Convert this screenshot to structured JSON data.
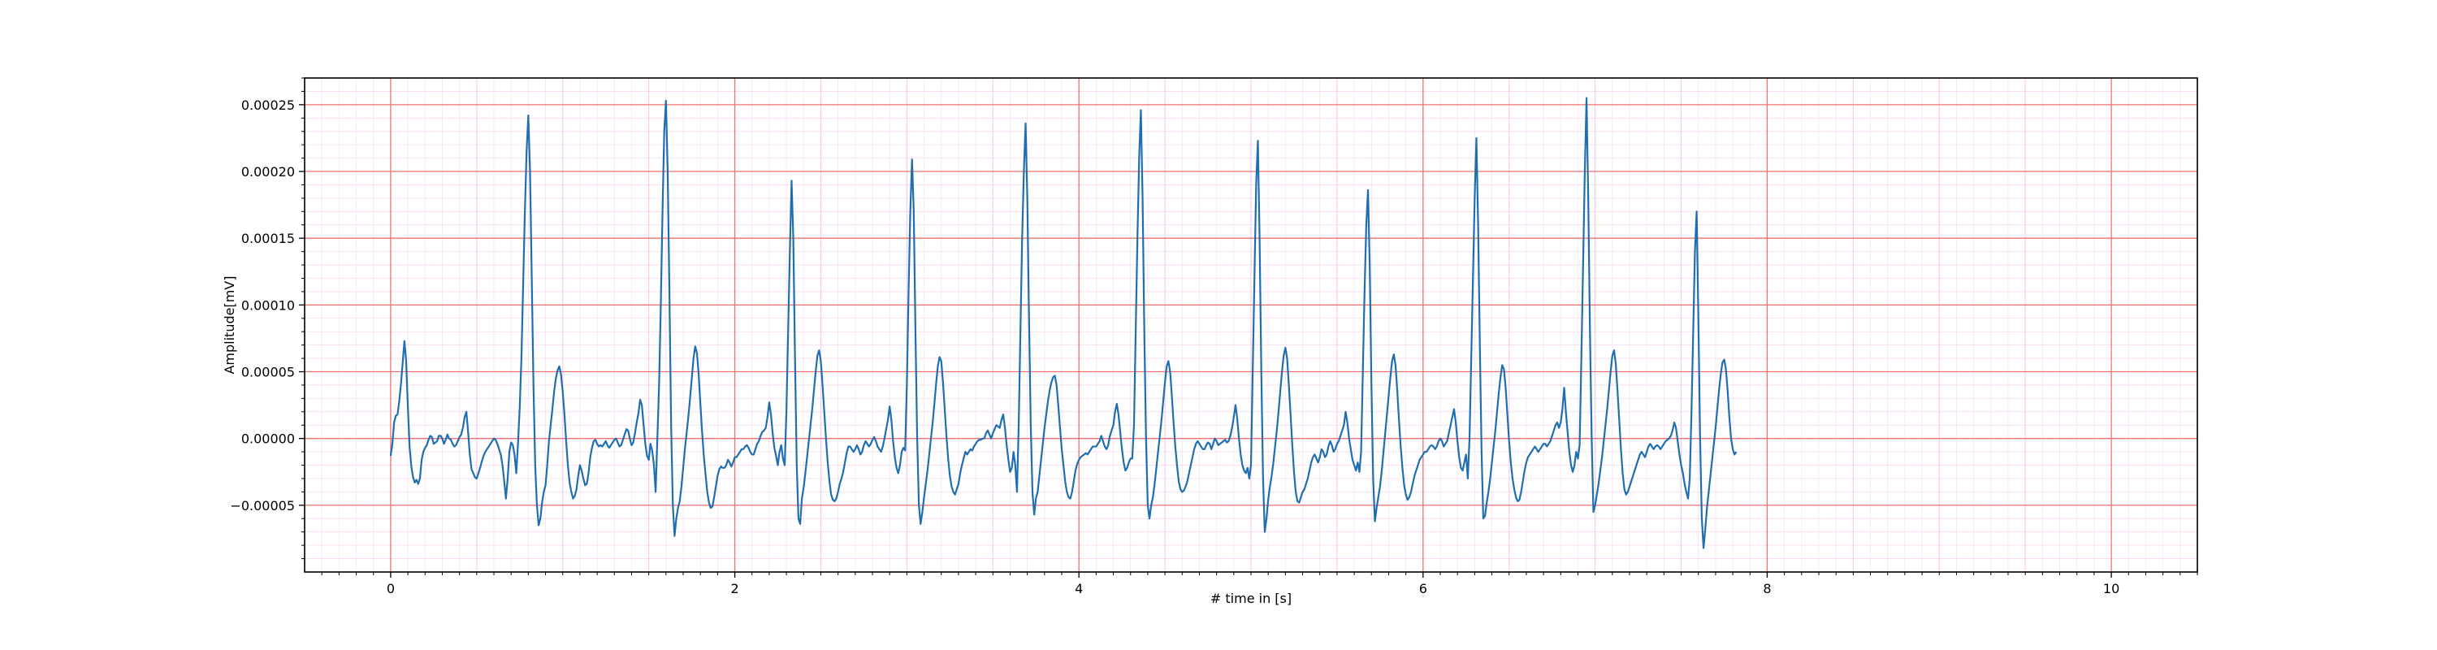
{
  "chart_data": {
    "type": "line",
    "title": "",
    "xlabel": "# time in [s]",
    "ylabel": "Amplitude[mV]",
    "xlim": [
      -0.5,
      10.5
    ],
    "ylim": [
      -0.0001,
      0.00027
    ],
    "x_ticks": [
      0,
      2,
      4,
      6,
      8,
      10
    ],
    "x_tick_labels": [
      "0",
      "2",
      "4",
      "6",
      "8",
      "10"
    ],
    "y_ticks": [
      -5e-05,
      0.0,
      5e-05,
      0.0001,
      0.00015,
      0.0002,
      0.00025
    ],
    "y_tick_labels": [
      "−0.00005",
      "0.00000",
      "0.00005",
      "0.00010",
      "0.00015",
      "0.00020",
      "0.00025"
    ],
    "grid": {
      "major": true,
      "minor": true,
      "major_color": "#f07070",
      "minor_color": "#f5c8ee"
    },
    "line_color": "#1f6fb0",
    "sample_interval_s": 0.01,
    "series": [
      {
        "name": "",
        "x_start": 0.0,
        "x_step": 0.01,
        "values": [
          -1.3e-05,
          -4e-06,
          1.2e-05,
          1.7e-05,
          1.8e-05,
          2.8e-05,
          4.1e-05,
          5.7e-05,
          7.3e-05,
          5.8e-05,
          2.4e-05,
          -6e-06,
          -2.1e-05,
          -2.9e-05,
          -3.3e-05,
          -3.1e-05,
          -3.4e-05,
          -3e-05,
          -1.6e-05,
          -1e-05,
          -7e-06,
          -5e-06,
          -1e-06,
          2e-06,
          1e-06,
          -4e-06,
          -3e-06,
          -2e-06,
          2e-06,
          2e-06,
          0.0,
          -4e-06,
          -1e-06,
          3e-06,
          0.0,
          -1e-06,
          -4e-06,
          -6e-06,
          -5e-06,
          -2e-06,
          1e-06,
          3e-06,
          8e-06,
          1.6e-05,
          2e-05,
          5e-06,
          -1.2e-05,
          -2.3e-05,
          -2.6e-05,
          -2.9e-05,
          -3e-05,
          -2.6e-05,
          -2.2e-05,
          -1.7e-05,
          -1.3e-05,
          -1e-05,
          -8e-06,
          -6e-06,
          -4e-06,
          -2e-06,
          0.0,
          -1e-06,
          -4e-06,
          -8e-06,
          -1.2e-05,
          -2e-05,
          -3.2e-05,
          -4.5e-05,
          -3e-05,
          -1e-05,
          -3e-06,
          -5e-06,
          -1.2e-05,
          -2.6e-05,
          -4e-06,
          2.3e-05,
          6e-05,
          0.000115,
          0.00017,
          0.000215,
          0.000242,
          0.0002,
          0.00012,
          4e-05,
          -2e-05,
          -5e-05,
          -6.5e-05,
          -6e-05,
          -4.8e-05,
          -4e-05,
          -3.5e-05,
          -2e-05,
          -2e-06,
          1e-05,
          2.2e-05,
          3.5e-05,
          4.5e-05,
          5.1e-05,
          5.4e-05,
          4.8e-05,
          3.5e-05,
          1.8e-05,
          -2e-06,
          -2e-05,
          -3.3e-05,
          -4e-05,
          -4.5e-05,
          -4.3e-05,
          -3.8e-05,
          -2.8e-05,
          -2e-05,
          -2.4e-05,
          -3e-05,
          -3.5e-05,
          -3.4e-05,
          -2.6e-05,
          -1.4e-05,
          -7e-06,
          -2e-06,
          -1e-06,
          -4e-06,
          -6e-06,
          -5e-06,
          -6e-06,
          -4e-06,
          -2e-06,
          -5e-06,
          -7e-06,
          -5e-06,
          -3e-06,
          -1e-06,
          0.0,
          -3e-06,
          -6e-06,
          -5e-06,
          -1e-06,
          3e-06,
          7e-06,
          6e-06,
          0.0,
          -5e-06,
          -3e-06,
          4e-06,
          1.2e-05,
          1.9e-05,
          2.9e-05,
          2.5e-05,
          1e-05,
          -4e-06,
          -1.3e-05,
          -1.6e-05,
          -4e-06,
          -9e-06,
          -2e-05,
          -4e-05,
          0.0,
          4e-05,
          0.0001,
          0.00017,
          0.00023,
          0.000253,
          0.0002,
          0.00011,
          1e-05,
          -5e-05,
          -7.3e-05,
          -6e-05,
          -5.2e-05,
          -4.7e-05,
          -3.6e-05,
          -2.2e-05,
          -8e-06,
          4e-06,
          1.6e-05,
          3e-05,
          4.5e-05,
          6e-05,
          6.9e-05,
          6.4e-05,
          4.8e-05,
          2.6e-05,
          5e-06,
          -1.3e-05,
          -2.7e-05,
          -4e-05,
          -4.8e-05,
          -5.2e-05,
          -5.1e-05,
          -4.4e-05,
          -3.6e-05,
          -2.8e-05,
          -2.3e-05,
          -2.1e-05,
          -2.2e-05,
          -2.2e-05,
          -2e-05,
          -1.6e-05,
          -1.8e-05,
          -2.1e-05,
          -1.8e-05,
          -1.4e-05,
          -1.4e-05,
          -1.2e-05,
          -1e-05,
          -8e-06,
          -8e-06,
          -6e-06,
          -5e-06,
          -7e-06,
          -1e-05,
          -1.2e-05,
          -1.2e-05,
          -8e-06,
          -4e-06,
          -2e-06,
          2e-06,
          5e-06,
          6e-06,
          8e-06,
          1.6e-05,
          2.7e-05,
          1.8e-05,
          4e-06,
          -7e-06,
          -1.3e-05,
          -2e-05,
          -1e-05,
          -5e-06,
          -1.5e-05,
          -2e-05,
          2e-05,
          8e-05,
          0.00014,
          0.000193,
          0.00015,
          6e-05,
          -2e-05,
          -6e-05,
          -6.4e-05,
          -4.5e-05,
          -3.7e-05,
          -2.6e-05,
          -1.4e-05,
          -2e-06,
          1e-05,
          2.2e-05,
          3.6e-05,
          5e-05,
          6.2e-05,
          6.6e-05,
          5.8e-05,
          4e-05,
          2e-05,
          0.0,
          -1.8e-05,
          -3.2e-05,
          -4.2e-05,
          -4.6e-05,
          -4.7e-05,
          -4.5e-05,
          -4e-05,
          -3.4e-05,
          -3e-05,
          -2.5e-05,
          -1.8e-05,
          -1.1e-05,
          -6e-06,
          -6e-06,
          -8e-06,
          -1e-05,
          -8e-06,
          -5e-06,
          -8e-06,
          -1.2e-05,
          -1e-05,
          -5e-06,
          -2e-06,
          -4e-06,
          -6e-06,
          -4e-06,
          -1e-06,
          1e-06,
          -2e-06,
          -6e-06,
          -8e-06,
          -1e-05,
          -6e-06,
          0.0,
          7e-06,
          1.4e-05,
          2.4e-05,
          1.4e-05,
          -2e-06,
          -1.4e-05,
          -2.2e-05,
          -2.6e-05,
          -2e-05,
          -1e-05,
          -7e-06,
          -9e-06,
          4e-05,
          0.00011,
          0.00017,
          0.000209,
          0.00017,
          8e-05,
          0.0,
          -5e-05,
          -6.4e-05,
          -5.5e-05,
          -4.4e-05,
          -3.4e-05,
          -2.4e-05,
          -1.2e-05,
          0.0,
          1.2e-05,
          2.6e-05,
          4.1e-05,
          5.4e-05,
          6.1e-05,
          5.8e-05,
          4.2e-05,
          2.2e-05,
          2e-06,
          -1.5e-05,
          -2.8e-05,
          -3.6e-05,
          -4e-05,
          -4.2e-05,
          -3.8e-05,
          -3.4e-05,
          -2.6e-05,
          -2e-05,
          -1.5e-05,
          -1e-05,
          -1.2e-05,
          -1e-05,
          -8e-06,
          -9e-06,
          -6e-06,
          -4e-06,
          -2e-06,
          -1e-06,
          -1e-06,
          0.0,
          0.0,
          4e-06,
          6e-06,
          3e-06,
          0.0,
          4e-06,
          7e-06,
          1e-05,
          9e-06,
          8e-06,
          1.4e-05,
          1.8e-05,
          8e-06,
          -5e-06,
          -1.6e-05,
          -2.5e-05,
          -2.2e-05,
          -1e-05,
          -2e-05,
          -4e-05,
          1e-05,
          8e-05,
          0.00015,
          0.0002,
          0.000236,
          0.00018,
          9e-05,
          1e-05,
          -4e-05,
          -5.7e-05,
          -4.5e-05,
          -4e-05,
          -2.8e-05,
          -1.6e-05,
          -4e-06,
          8e-06,
          1.8e-05,
          2.8e-05,
          3.6e-05,
          4.2e-05,
          4.6e-05,
          4.7e-05,
          4e-05,
          2.5e-05,
          8e-06,
          -8e-06,
          -2e-05,
          -3.2e-05,
          -4e-05,
          -4.4e-05,
          -4.5e-05,
          -4e-05,
          -3.2e-05,
          -2.4e-05,
          -1.9e-05,
          -1.6e-05,
          -1.4e-05,
          -1.3e-05,
          -1.2e-05,
          -1.1e-05,
          -1.2e-05,
          -1e-05,
          -8e-06,
          -6e-06,
          -6e-06,
          -6e-06,
          -4e-06,
          -2e-06,
          2e-06,
          -2e-06,
          -6e-06,
          -8e-06,
          -5e-06,
          2e-06,
          6e-06,
          1e-05,
          2e-05,
          2.6e-05,
          1.8e-05,
          5e-06,
          -8e-06,
          -1.8e-05,
          -2.4e-05,
          -2.2e-05,
          -1.8e-05,
          -1.5e-05,
          -1.5e-05,
          1e-05,
          8e-05,
          0.00015,
          0.00021,
          0.000246,
          0.00018,
          8e-05,
          0.0,
          -5e-05,
          -6e-05,
          -5e-05,
          -4.4e-05,
          -3.4e-05,
          -2.2e-05,
          -1e-05,
          2e-06,
          1.4e-05,
          2.8e-05,
          4.2e-05,
          5.4e-05,
          5.8e-05,
          5e-05,
          3.2e-05,
          1.2e-05,
          -6e-06,
          -2e-05,
          -3.2e-05,
          -3.8e-05,
          -4e-05,
          -3.9e-05,
          -3.6e-05,
          -3.2e-05,
          -2.6e-05,
          -2e-05,
          -1.4e-05,
          -8e-06,
          -4e-06,
          -2e-06,
          -4e-06,
          -6e-06,
          -8e-06,
          -8e-06,
          -5e-06,
          -3e-06,
          -4e-06,
          -8e-06,
          -4e-06,
          0.0,
          -2e-06,
          -5e-06,
          -4e-06,
          -3e-06,
          -2e-06,
          -1e-06,
          -3e-06,
          -2e-06,
          2e-06,
          8e-06,
          1.6e-05,
          2.5e-05,
          1.5e-05,
          0.0,
          -1.2e-05,
          -2e-05,
          -2.4e-05,
          -2.6e-05,
          -2.2e-05,
          -3e-05,
          -2e-05,
          5e-05,
          0.00012,
          0.00019,
          0.000223,
          0.00015,
          5e-05,
          -3e-05,
          -7e-05,
          -6e-05,
          -4.6e-05,
          -3.6e-05,
          -2.8e-05,
          -1.8e-05,
          -6e-06,
          6e-06,
          2e-05,
          3.5e-05,
          5e-05,
          6.2e-05,
          6.8e-05,
          6e-05,
          4e-05,
          1.8e-05,
          -5e-06,
          -2.5e-05,
          -4e-05,
          -4.7e-05,
          -4.8e-05,
          -4.4e-05,
          -4e-05,
          -3.8e-05,
          -3.4e-05,
          -3e-05,
          -2.4e-05,
          -1.8e-05,
          -1.4e-05,
          -1.2e-05,
          -1.5e-05,
          -1.8e-05,
          -1.4e-05,
          -8e-06,
          -1e-05,
          -1.4e-05,
          -1.2e-05,
          -6e-06,
          -2e-06,
          -5e-06,
          -1e-05,
          -8e-06,
          -4e-06,
          -2e-06,
          2e-06,
          6e-06,
          1e-05,
          2e-05,
          1.2e-05,
          0.0,
          -8e-06,
          -1.6e-05,
          -2e-05,
          -2.4e-05,
          -1.8e-05,
          -2.5e-05,
          -1e-05,
          5e-05,
          0.00011,
          0.00016,
          0.000186,
          0.00013,
          4e-05,
          -3e-05,
          -6.2e-05,
          -5.2e-05,
          -4.4e-05,
          -3.6e-05,
          -2.4e-05,
          -1e-05,
          4e-06,
          1.8e-05,
          3.2e-05,
          4.6e-05,
          5.8e-05,
          6.3e-05,
          5.5e-05,
          3.6e-05,
          1.4e-05,
          -6e-06,
          -2.2e-05,
          -3.5e-05,
          -4.2e-05,
          -4.6e-05,
          -4.4e-05,
          -4e-05,
          -3.4e-05,
          -2.8e-05,
          -2.4e-05,
          -2e-05,
          -1.6e-05,
          -1.4e-05,
          -1.2e-05,
          -1e-05,
          -1e-05,
          -8e-06,
          -6e-06,
          -5e-06,
          -6e-06,
          -8e-06,
          -6e-06,
          -2e-06,
          0.0,
          -2e-06,
          -6e-06,
          -4e-06,
          -2e-06,
          4e-06,
          1e-05,
          1.6e-05,
          2.2e-05,
          1.2e-05,
          -2e-06,
          -1.4e-05,
          -2.2e-05,
          -2.4e-05,
          -1.8e-05,
          -1.2e-05,
          -3e-05,
          0.0,
          6e-05,
          0.00012,
          0.00018,
          0.000225,
          0.00016,
          7e-05,
          -1e-05,
          -6e-05,
          -5.8e-05,
          -4.8e-05,
          -4e-05,
          -3e-05,
          -1.8e-05,
          -6e-06,
          6e-06,
          2e-05,
          3.4e-05,
          4.6e-05,
          5.5e-05,
          5.2e-05,
          3.8e-05,
          1.8e-05,
          -2e-06,
          -1.8e-05,
          -3e-05,
          -3.8e-05,
          -4.4e-05,
          -4.7e-05,
          -4.6e-05,
          -4e-05,
          -3.2e-05,
          -2.4e-05,
          -1.8e-05,
          -1.4e-05,
          -1.2e-05,
          -1e-05,
          -8e-06,
          -6e-06,
          -8e-06,
          -1e-05,
          -8e-06,
          -6e-06,
          -4e-06,
          -4e-06,
          -6e-06,
          -4e-06,
          -2e-06,
          2e-06,
          6e-06,
          1e-05,
          1.2e-05,
          8e-06,
          1.2e-05,
          2.2e-05,
          3.8e-05,
          2e-05,
          5e-06,
          -1e-05,
          -2e-05,
          -2.5e-05,
          -2e-05,
          -1e-05,
          -1.5e-05,
          -5e-06,
          6e-05,
          0.00013,
          0.0002,
          0.000255,
          0.00018,
          8e-05,
          0.0,
          -5.5e-05,
          -5e-05,
          -4.2e-05,
          -3.4e-05,
          -2.4e-05,
          -1.4e-05,
          -2e-06,
          1e-05,
          2.2e-05,
          3.6e-05,
          5e-05,
          6.2e-05,
          6.6e-05,
          5.6e-05,
          3.6e-05,
          1.4e-05,
          -8e-06,
          -2.6e-05,
          -3.8e-05,
          -4.2e-05,
          -4e-05,
          -3.6e-05,
          -3.2e-05,
          -2.8e-05,
          -2.4e-05,
          -2e-05,
          -1.6e-05,
          -1.2e-05,
          -1e-05,
          -1.2e-05,
          -1.4e-05,
          -1e-05,
          -6e-06,
          -4e-06,
          -6e-06,
          -8e-06,
          -6e-06,
          -5e-06,
          -6e-06,
          -8e-06,
          -6e-06,
          -4e-06,
          -2e-06,
          -1e-06,
          0.0,
          2e-06,
          6e-06,
          1.2e-05,
          8e-06,
          -2e-06,
          -1.2e-05,
          -2e-05,
          -2.6e-05,
          -3.4e-05,
          -4e-05,
          -4.5e-05,
          -3e-05,
          2e-05,
          8e-05,
          0.00014,
          0.00017,
          9e-05,
          0.0,
          -6e-05,
          -8.2e-05,
          -6.8e-05,
          -5.2e-05,
          -4e-05,
          -2.8e-05,
          -1.6e-05,
          -4e-06,
          8e-06,
          2.2e-05,
          3.6e-05,
          4.8e-05,
          5.7e-05,
          5.9e-05,
          5.2e-05,
          3.6e-05,
          1.6e-05,
          0.0,
          -8e-06,
          -1.2e-05,
          -1e-05
        ]
      }
    ]
  }
}
